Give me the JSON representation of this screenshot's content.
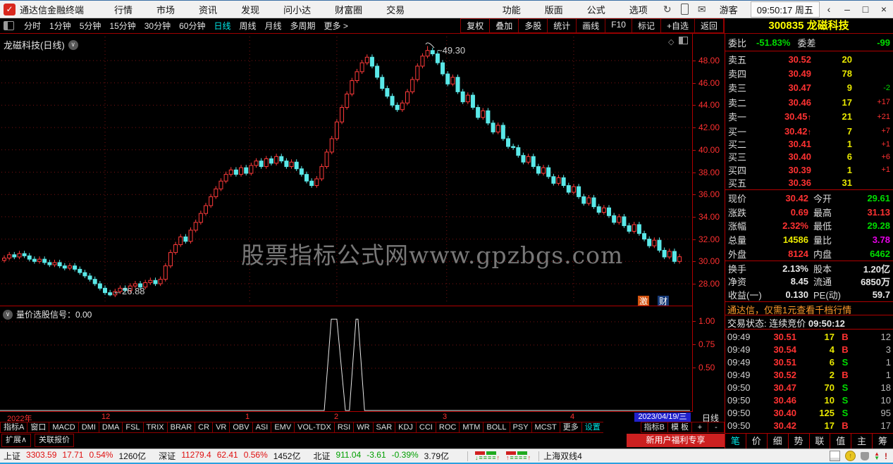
{
  "titlebar": {
    "app": "通达信金融终端",
    "menus": [
      "行情",
      "市场",
      "资讯",
      "发现",
      "问小达",
      "财富圈",
      "交易"
    ],
    "menus_right": [
      "功能",
      "版面",
      "公式",
      "选项"
    ],
    "user": "游客",
    "clock": "09:50:17 周五"
  },
  "toolbar": {
    "periods": [
      "分时",
      "1分钟",
      "5分钟",
      "15分钟",
      "30分钟",
      "60分钟",
      "日线",
      "周线",
      "月线",
      "多周期",
      "更多 >"
    ],
    "active_period": "日线",
    "buttons": [
      "复权",
      "叠加",
      "多股",
      "统计",
      "画线",
      "F10",
      "标记",
      "+自选",
      "返回"
    ],
    "stock_code": "300835",
    "stock_name": "龙磁科技"
  },
  "chart": {
    "label": "龙磁科技(日线)",
    "watermark": "股票指标公式网www.gpzbgs.com",
    "high_annotation": "49.30",
    "low_annotation": "26.88",
    "badges": [
      "激",
      "财"
    ],
    "y_ticks": [
      "48.00",
      "46.00",
      "44.00",
      "42.00",
      "40.00",
      "38.00",
      "36.00",
      "34.00",
      "32.00",
      "30.00",
      "28.00"
    ],
    "timeline": [
      "2022年",
      "12",
      "1",
      "2",
      "3",
      "4"
    ],
    "date_highlight": "2023/04/19/三",
    "period_label": "日线"
  },
  "chart_data": {
    "type": "candlestick",
    "title": "龙磁科技 日线 2022-11 至 2023-04",
    "y_range": [
      26.0,
      50.3
    ],
    "first_open": 30.1,
    "closes": [
      30.3,
      30.6,
      30.4,
      30.7,
      30.5,
      30.2,
      30.0,
      30.2,
      29.9,
      29.7,
      29.9,
      29.6,
      29.4,
      29.6,
      29.3,
      29.0,
      28.7,
      28.4,
      28.0,
      27.6,
      27.2,
      27.0,
      27.3,
      27.6,
      27.4,
      27.8,
      28.0,
      27.7,
      28.1,
      28.3,
      28.0,
      28.4,
      29.6,
      30.8,
      31.5,
      32.2,
      31.8,
      32.8,
      33.5,
      34.3,
      35.0,
      35.8,
      36.5,
      37.2,
      37.8,
      38.2,
      37.8,
      38.4,
      37.9,
      38.6,
      39.0,
      38.5,
      39.2,
      38.8,
      39.4,
      39.0,
      38.5,
      38.9,
      38.3,
      37.8,
      37.2,
      36.8,
      37.4,
      38.5,
      39.8,
      41.0,
      42.5,
      43.8,
      45.0,
      46.2,
      47.0,
      47.8,
      48.3,
      47.5,
      46.5,
      45.5,
      44.8,
      44.0,
      43.6,
      44.2,
      45.2,
      46.3,
      47.5,
      48.4,
      48.9,
      48.6,
      47.8,
      46.8,
      45.9,
      46.5,
      45.2,
      44.3,
      44.9,
      43.8,
      42.9,
      43.5,
      42.4,
      41.6,
      42.2,
      41.0,
      40.3,
      40.2,
      39.5,
      38.9,
      39.4,
      38.5,
      37.9,
      38.4,
      37.6,
      37.0,
      37.5,
      36.8,
      36.2,
      36.7,
      35.8,
      35.2,
      35.7,
      34.9,
      34.4,
      34.8,
      34.1,
      33.5,
      34.0,
      33.2,
      32.7,
      33.3,
      32.5,
      32.0,
      31.4,
      31.9,
      31.0,
      30.4,
      30.9,
      30.0,
      30.42
    ],
    "low_point": {
      "index": 21,
      "value": 26.88
    },
    "high_point": {
      "index": 84,
      "value": 49.3
    },
    "month_line_indices": [
      20,
      48.7,
      66,
      87.8,
      113
    ]
  },
  "subchart": {
    "title": "量价选股信号：0.00",
    "y_ticks": [
      "1.00",
      "0.75",
      "0.50"
    ],
    "spike_value": 1.03,
    "spikes": [
      {
        "start": 63.5,
        "peak_start": 64.9,
        "peak_end": 66.0,
        "end": 67.7
      },
      {
        "start": 68.5,
        "peak_start": 69.8,
        "peak_end": 70.2,
        "end": 71.5
      }
    ]
  },
  "indicator_tabs": {
    "left": [
      "指标A",
      "窗口",
      "MACD",
      "DMI",
      "DMA",
      "FSL",
      "TRIX",
      "BRAR",
      "CR",
      "VR",
      "OBV",
      "ASI",
      "EMV",
      "VOL-TDX",
      "RSI",
      "WR",
      "SAR",
      "KDJ",
      "CCI",
      "ROC",
      "MTM",
      "BOLL",
      "PSY",
      "MCST",
      "更多",
      "设置"
    ],
    "cyan_item": "设置",
    "right": [
      "指标B",
      "模 板",
      "+",
      "-"
    ]
  },
  "quote": {
    "weibi_label": "委比",
    "weibi": "-51.83%",
    "weicha_label": "委差",
    "weicha": "-99",
    "sells": [
      {
        "label": "卖五",
        "price": "30.52",
        "vol": "20",
        "delta": "",
        "arrow": false
      },
      {
        "label": "卖四",
        "price": "30.49",
        "vol": "78",
        "delta": "",
        "arrow": false
      },
      {
        "label": "卖三",
        "price": "30.47",
        "vol": "9",
        "delta": "-2",
        "arrow": false
      },
      {
        "label": "卖二",
        "price": "30.46",
        "vol": "17",
        "delta": "+17",
        "arrow": false
      },
      {
        "label": "卖一",
        "price": "30.45",
        "vol": "21",
        "delta": "+21",
        "arrow": true
      }
    ],
    "buys": [
      {
        "label": "买一",
        "price": "30.42",
        "vol": "7",
        "delta": "+7",
        "arrow": true
      },
      {
        "label": "买二",
        "price": "30.41",
        "vol": "1",
        "delta": "+1",
        "arrow": false
      },
      {
        "label": "买三",
        "price": "30.40",
        "vol": "6",
        "delta": "+6",
        "arrow": false
      },
      {
        "label": "买四",
        "price": "30.39",
        "vol": "1",
        "delta": "+1",
        "arrow": false
      },
      {
        "label": "买五",
        "price": "30.36",
        "vol": "31",
        "delta": "",
        "arrow": false
      }
    ],
    "stats": [
      {
        "l1": "现价",
        "v1": "30.42",
        "c1": "c-red",
        "l2": "今开",
        "v2": "29.61",
        "c2": "c-green"
      },
      {
        "l1": "涨跌",
        "v1": "0.69",
        "c1": "c-red",
        "l2": "最高",
        "v2": "31.13",
        "c2": "c-red"
      },
      {
        "l1": "涨幅",
        "v1": "2.32%",
        "c1": "c-red",
        "l2": "最低",
        "v2": "29.28",
        "c2": "c-green"
      },
      {
        "l1": "总量",
        "v1": "14586",
        "c1": "c-yel",
        "l2": "量比",
        "v2": "3.78",
        "c2": "c-mag"
      },
      {
        "l1": "外盘",
        "v1": "8124",
        "c1": "c-red",
        "l2": "内盘",
        "v2": "6462",
        "c2": "c-green"
      }
    ],
    "fin": [
      {
        "l1": "换手",
        "v1": "2.13%",
        "l2": "股本",
        "v2": "1.20亿"
      },
      {
        "l1": "净资",
        "v1": "8.45",
        "l2": "流通",
        "v2": "6850万"
      },
      {
        "l1": "收益(一)",
        "v1": "0.130",
        "l2": "PE(动)",
        "v2": "59.7"
      }
    ],
    "ad": "通达信，仅需1元查看千档行情",
    "status": "交易状态: 连续竞价",
    "status_time": "09:50:12",
    "ticks": [
      {
        "t": "09:49",
        "p": "30.51",
        "v": "17",
        "s": "B",
        "n": "12"
      },
      {
        "t": "09:49",
        "p": "30.54",
        "v": "4",
        "s": "B",
        "n": "3"
      },
      {
        "t": "09:49",
        "p": "30.51",
        "v": "6",
        "s": "S",
        "n": "1"
      },
      {
        "t": "09:49",
        "p": "30.52",
        "v": "2",
        "s": "B",
        "n": "1"
      },
      {
        "t": "09:50",
        "p": "30.47",
        "v": "70",
        "s": "S",
        "n": "18"
      },
      {
        "t": "09:50",
        "p": "30.46",
        "v": "10",
        "s": "S",
        "n": "10"
      },
      {
        "t": "09:50",
        "p": "30.40",
        "v": "125",
        "s": "S",
        "n": "95"
      },
      {
        "t": "09:50",
        "p": "30.42",
        "v": "17",
        "s": "B",
        "n": "17"
      }
    ],
    "tabs": [
      "笔",
      "价",
      "细",
      "势",
      "联",
      "值",
      "主",
      "筹"
    ],
    "active_tab": "笔"
  },
  "bottom": {
    "expand": "扩展∧",
    "linked": "关联报价",
    "promo": "新用户福利专享",
    "workspace": "上海双线4",
    "indices": [
      {
        "name": "上证",
        "value": "3303.59",
        "chg": "17.71",
        "pct": "0.54%",
        "amt": "1260亿",
        "dir": "up"
      },
      {
        "name": "深证",
        "value": "11279.4",
        "chg": "62.41",
        "pct": "0.56%",
        "amt": "1452亿",
        "dir": "up"
      },
      {
        "name": "北证",
        "value": "911.04",
        "chg": "-3.61",
        "pct": "-0.39%",
        "amt": "3.79亿",
        "dir": "down"
      }
    ]
  },
  "colors": {
    "up": "#ff3a3a",
    "down": "#5ae8e8",
    "grid": "#7c1212",
    "axis": "#ff3030",
    "frame": "#b00000"
  }
}
